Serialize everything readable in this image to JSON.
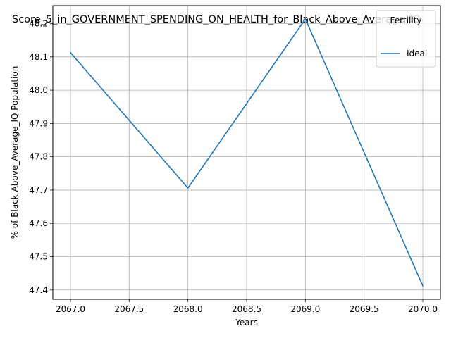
{
  "chart_data": {
    "type": "line",
    "title": "Score_5_in_GOVERNMENT_SPENDING_ON_HEALTH_for_Black_Above_Average_IQ",
    "xlabel": "Years",
    "ylabel": "% of Black Above_Average_IQ Population",
    "x": [
      2067,
      2068,
      2069,
      2070
    ],
    "series": [
      {
        "name": "Ideal",
        "values": [
          48.113,
          47.706,
          48.214,
          47.412
        ],
        "color": "#1f77b4"
      }
    ],
    "xlim": [
      2066.85,
      2070.15
    ],
    "ylim": [
      47.372,
      48.254
    ],
    "xticks": [
      2067.0,
      2067.5,
      2068.0,
      2068.5,
      2069.0,
      2069.5,
      2070.0
    ],
    "xtick_labels": [
      "2067.0",
      "2067.5",
      "2068.0",
      "2068.5",
      "2069.0",
      "2069.5",
      "2070.0"
    ],
    "yticks": [
      47.4,
      47.5,
      47.6,
      47.7,
      47.8,
      47.9,
      48.0,
      48.1,
      48.2
    ],
    "ytick_labels": [
      "47.4",
      "47.5",
      "47.6",
      "47.7",
      "47.8",
      "47.9",
      "48.0",
      "48.1",
      "48.2"
    ],
    "grid": true,
    "legend": {
      "title": "Fertility",
      "position": "top-right"
    }
  }
}
